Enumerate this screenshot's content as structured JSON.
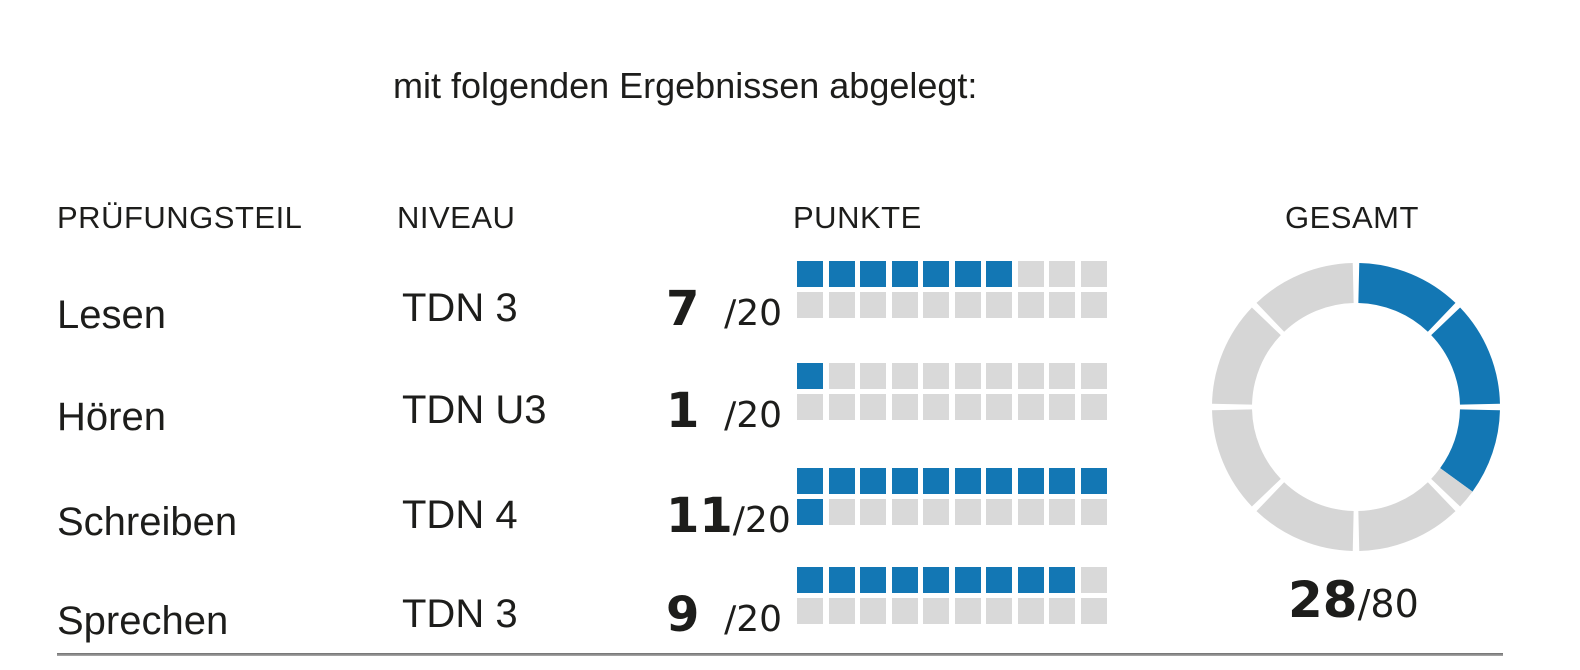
{
  "title": "mit folgenden Ergebnissen abgelegt:",
  "table": {
    "headers": {
      "part": "PRÜFUNGSTEIL",
      "level": "NIVEAU",
      "points": "PUNKTE",
      "total": "GESAMT"
    },
    "rows": [
      {
        "part": "Lesen",
        "level": "TDN 3",
        "score": 7,
        "max": 20,
        "max_label": "/20"
      },
      {
        "part": "Hören",
        "level": "TDN U3",
        "score": 1,
        "max": 20,
        "max_label": "/20"
      },
      {
        "part": "Schreiben",
        "level": "TDN 4",
        "score": 11,
        "max": 20,
        "max_label": "/20"
      },
      {
        "part": "Sprechen",
        "level": "TDN 3",
        "score": 9,
        "max": 20,
        "max_label": "/20"
      }
    ]
  },
  "total": {
    "score": 28,
    "max": 80,
    "max_label": "/80"
  },
  "colors": {
    "accent_blue": "#1377b4",
    "block_gray": "#d9d9d9",
    "donut_gray": "#d6d6d6",
    "text": "#1d1d1b",
    "rule_gray": "#7a7a7a"
  },
  "chart_data": [
    {
      "type": "bar",
      "title": "PUNKTE",
      "style": "waffle-unit-squares, per category 2 rows × 10 squares (1 square = 1 point), filled left-to-right top row first",
      "categories": [
        "Lesen",
        "Hören",
        "Schreiben",
        "Sprechen"
      ],
      "levels": [
        "TDN 3",
        "TDN U3",
        "TDN 4",
        "TDN 3"
      ],
      "values": [
        7,
        1,
        11,
        9
      ],
      "max_per_category": 20,
      "value_labels": [
        "7 /20",
        "1 /20",
        "11/20",
        "9 /20"
      ],
      "filled_color": "#1377b4",
      "empty_color": "#d9d9d9"
    },
    {
      "type": "pie",
      "title": "GESAMT",
      "style": "donut ring of 8 segments (10 points each) separated by thin white gaps, value filled clockwise from 12 o'clock",
      "value": 28,
      "max": 80,
      "label": "28/80",
      "filled_color": "#1377b4",
      "empty_color": "#d6d6d6"
    }
  ]
}
